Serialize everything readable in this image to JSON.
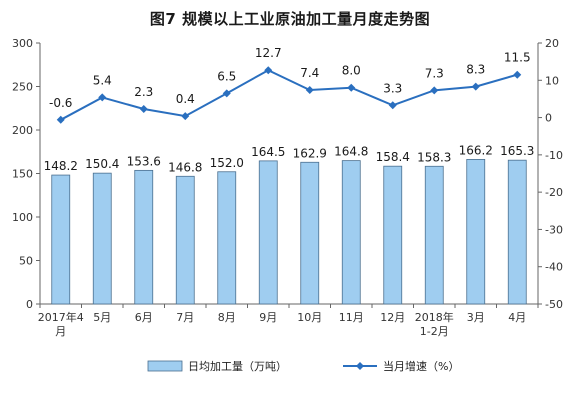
{
  "chart_data": {
    "type": "bar",
    "title": "图7  规模以上工业原油加工量月度走势图",
    "categories": [
      "2017年4月",
      "5月",
      "6月",
      "7月",
      "8月",
      "9月",
      "10月",
      "11月",
      "12月",
      "2018年1-2月",
      "3月",
      "4月"
    ],
    "category_lines": [
      [
        "2017年4",
        "月"
      ],
      [
        "5月"
      ],
      [
        "6月"
      ],
      [
        "7月"
      ],
      [
        "8月"
      ],
      [
        "9月"
      ],
      [
        "10月"
      ],
      [
        "11月"
      ],
      [
        "12月"
      ],
      [
        "2018年",
        "1-2月"
      ],
      [
        "3月"
      ],
      [
        "4月"
      ]
    ],
    "series": [
      {
        "name": "日均加工量（万吨）",
        "type": "bar",
        "axis": "left",
        "color": "#9fcdf0",
        "values": [
          148.2,
          150.4,
          153.6,
          146.8,
          152.0,
          164.5,
          162.9,
          164.8,
          158.4,
          158.3,
          166.2,
          165.3
        ],
        "labels": [
          "148.2",
          "150.4",
          "153.6",
          "146.8",
          "152.0",
          "164.5",
          "162.9",
          "164.8",
          "158.4",
          "158.3",
          "166.2",
          "165.3"
        ]
      },
      {
        "name": "当月增速（%）",
        "type": "line",
        "axis": "right",
        "color": "#2a6fbf",
        "values": [
          -0.6,
          5.4,
          2.3,
          0.4,
          6.5,
          12.7,
          7.4,
          8.0,
          3.3,
          7.3,
          8.3,
          11.5
        ],
        "labels": [
          "-0.6",
          "5.4",
          "2.3",
          "0.4",
          "6.5",
          "12.7",
          "7.4",
          "8.0",
          "3.3",
          "7.3",
          "8.3",
          "11.5"
        ]
      }
    ],
    "left_axis": {
      "ylim": [
        0,
        300
      ],
      "ticks": [
        0,
        50,
        100,
        150,
        200,
        250,
        300
      ]
    },
    "right_axis": {
      "ylim": [
        -50,
        20
      ],
      "ticks": [
        -50,
        -40,
        -30,
        -20,
        -10,
        0,
        10,
        20
      ]
    },
    "grid": false,
    "legend_position": "bottom"
  }
}
